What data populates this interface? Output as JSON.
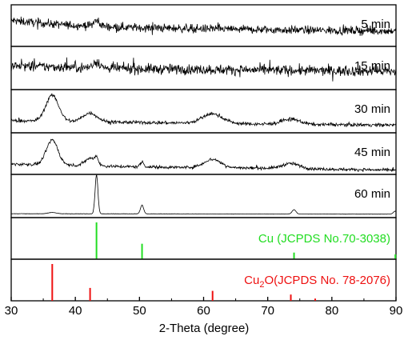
{
  "chart_data": {
    "type": "line",
    "title": "",
    "xlabel": "2-Theta (degree)",
    "ylabel": "",
    "xlim": [
      30,
      90
    ],
    "x_ticks": [
      30,
      40,
      50,
      60,
      70,
      80,
      90
    ],
    "grid": false,
    "legend": "none",
    "panels": [
      {
        "name": "5 min",
        "label": "5  min",
        "color": "#000000",
        "kind": "xrd-pattern",
        "noise": 0.55,
        "baseline": [
          [
            30,
            0.62
          ],
          [
            38,
            0.52
          ],
          [
            50,
            0.45
          ],
          [
            70,
            0.4
          ],
          [
            90,
            0.37
          ]
        ],
        "peaks": [
          [
            43.3,
            0.12,
            0.5
          ]
        ]
      },
      {
        "name": "15 min",
        "label": "15 min",
        "color": "#000000",
        "kind": "xrd-pattern",
        "noise": 0.65,
        "baseline": [
          [
            30,
            0.55
          ],
          [
            50,
            0.48
          ],
          [
            70,
            0.45
          ],
          [
            90,
            0.42
          ]
        ],
        "peaks": [
          [
            43.3,
            0.15,
            0.5
          ]
        ]
      },
      {
        "name": "30 min",
        "label": "30 min",
        "color": "#000000",
        "kind": "xrd-pattern",
        "noise": 0.22,
        "baseline": [
          [
            30,
            0.28
          ],
          [
            50,
            0.24
          ],
          [
            70,
            0.2
          ],
          [
            90,
            0.18
          ]
        ],
        "peaks": [
          [
            36.4,
            0.6,
            1.0
          ],
          [
            42.3,
            0.2,
            1.1
          ],
          [
            61.4,
            0.22,
            1.6
          ],
          [
            73.6,
            0.12,
            1.4
          ]
        ]
      },
      {
        "name": "45 min",
        "label": "45 min",
        "color": "#000000",
        "kind": "xrd-pattern",
        "noise": 0.2,
        "baseline": [
          [
            30,
            0.25
          ],
          [
            50,
            0.18
          ],
          [
            70,
            0.15
          ],
          [
            90,
            0.1
          ]
        ],
        "peaks": [
          [
            36.4,
            0.6,
            0.9
          ],
          [
            42.3,
            0.18,
            0.8
          ],
          [
            43.3,
            0.15,
            0.3
          ],
          [
            50.4,
            0.12,
            0.3
          ],
          [
            61.4,
            0.2,
            1.3
          ],
          [
            73.6,
            0.12,
            1.3
          ]
        ]
      },
      {
        "name": "60 min",
        "label": "60 min",
        "color": "#000000",
        "kind": "xrd-pattern",
        "noise": 0.02,
        "baseline": [
          [
            30,
            0.09
          ],
          [
            90,
            0.08
          ]
        ],
        "peaks": [
          [
            36.4,
            0.03,
            0.6
          ],
          [
            43.3,
            0.9,
            0.22
          ],
          [
            50.4,
            0.2,
            0.25
          ],
          [
            74.1,
            0.1,
            0.3
          ],
          [
            89.9,
            0.07,
            0.3
          ]
        ]
      },
      {
        "name": "Cu (JCPDS No.70-3038)",
        "label": "Cu (JCPDS No.70-3038)",
        "color": "#22dd22",
        "kind": "reference",
        "lines": [
          [
            43.3,
            1.0
          ],
          [
            50.4,
            0.42
          ],
          [
            74.1,
            0.18
          ],
          [
            89.9,
            0.13
          ]
        ]
      },
      {
        "name": "Cu2O (JCPDS No. 78-2076)",
        "label_main": "Cu",
        "label_sub": "2",
        "label_rest": "O(JCPDS No. 78-2076)",
        "color": "#ee1111",
        "kind": "reference",
        "lines": [
          [
            36.4,
            1.0
          ],
          [
            42.3,
            0.35
          ],
          [
            61.4,
            0.27
          ],
          [
            73.6,
            0.17
          ],
          [
            77.4,
            0.06
          ]
        ]
      }
    ]
  }
}
